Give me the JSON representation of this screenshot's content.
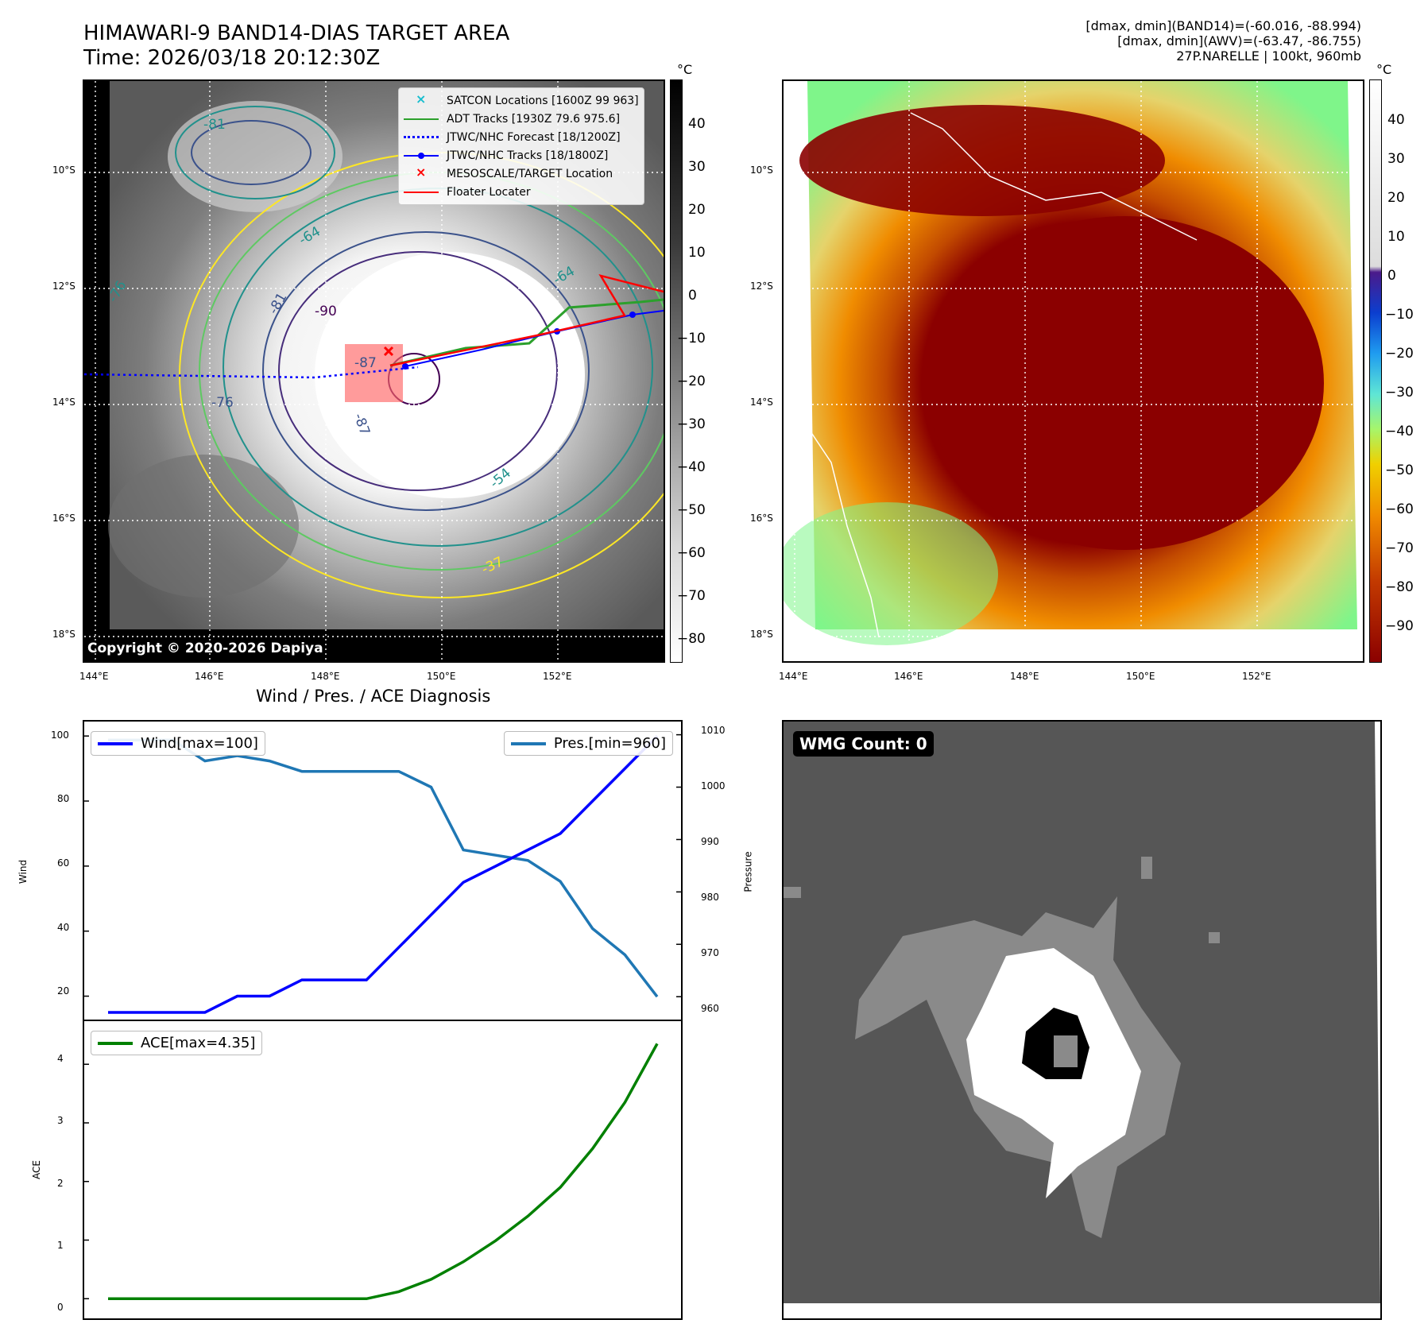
{
  "header": {
    "title_line1": "HIMAWARI-9 BAND14-DIAS TARGET AREA",
    "title_line2": "Time: 2026/03/18 20:12:30Z",
    "right_line1": "[dmax, dmin](BAND14)=(-60.016, -88.994)",
    "right_line2": "[dmax, dmin](AWV)=(-63.47, -86.755)",
    "right_line3": "27P.NARELLE | 100kt, 960mb"
  },
  "map_axes": {
    "lat_labels": [
      "10°S",
      "12°S",
      "14°S",
      "16°S",
      "18°S"
    ],
    "lon_labels": [
      "144°E",
      "146°E",
      "148°E",
      "150°E",
      "152°E"
    ]
  },
  "ir_panel": {
    "copyright": "Copyright © 2020-2026 Dapiya",
    "legend": [
      {
        "label": "SATCON Locations [1600Z 99 963]",
        "symbol": "x",
        "color": "#17becf"
      },
      {
        "label": "ADT Tracks [1930Z 79.6 975.6]",
        "symbol": "line",
        "color": "#2ca02c"
      },
      {
        "label": "JTWC/NHC Forecast [18/1200Z]",
        "symbol": "dotted",
        "color": "#0000ff"
      },
      {
        "label": "JTWC/NHC Tracks [18/1800Z]",
        "symbol": "line-dot",
        "color": "#0000ff"
      },
      {
        "label": "MESOSCALE/TARGET Location",
        "symbol": "x",
        "color": "#ff0000"
      },
      {
        "label": "Floater Locater",
        "symbol": "line",
        "color": "#ff0000"
      }
    ],
    "contour_labels": [
      "-64",
      "-76",
      "-81",
      "-87",
      "-90",
      "-54",
      "-76",
      "-87",
      "-37",
      "-64",
      "-81"
    ],
    "colorbar": {
      "unit": "°C",
      "ticks": [
        "40",
        "30",
        "20",
        "10",
        "0",
        "−10",
        "−20",
        "−30",
        "−40",
        "−50",
        "−60",
        "−70",
        "−80"
      ]
    }
  },
  "wv_panel": {
    "colorbar": {
      "unit": "°C",
      "ticks": [
        "40",
        "30",
        "20",
        "10",
        "0",
        "−10",
        "−20",
        "−30",
        "−40",
        "−50",
        "−60",
        "−70",
        "−80",
        "−90"
      ]
    }
  },
  "wmg_panel": {
    "label": "WMG Count: 0"
  },
  "chart_data": [
    {
      "type": "line",
      "title": "Wind / Pres. / ACE Diagnosis",
      "xlabel": "",
      "ylabel": "Wind",
      "ylabel_right": "Pressure",
      "x": [
        0,
        1,
        2,
        3,
        4,
        5,
        6,
        7,
        8,
        9,
        10,
        11,
        12,
        13,
        14,
        15,
        16,
        17
      ],
      "series": [
        {
          "name": "Wind",
          "legend": "Wind[max=100]",
          "axis": "left",
          "color": "#0000ff",
          "values": [
            15,
            15,
            15,
            15,
            20,
            20,
            25,
            25,
            25,
            35,
            45,
            55,
            60,
            65,
            70,
            80,
            90,
            100
          ]
        },
        {
          "name": "Pressure",
          "legend": "Pres.[min=960]",
          "axis": "right",
          "color": "#1f77b4",
          "values": [
            1009,
            1009,
            1009,
            1005,
            1006,
            1005,
            1003,
            1003,
            1003,
            1003,
            1000,
            988,
            987,
            986,
            982,
            973,
            968,
            960
          ]
        }
      ],
      "ylim": [
        15,
        102
      ],
      "ylim_right": [
        957,
        1011
      ],
      "yticks": [
        "100",
        "80",
        "60",
        "40",
        "20"
      ],
      "yticks_right": [
        "1010",
        "1000",
        "990",
        "980",
        "970",
        "960"
      ]
    },
    {
      "type": "line",
      "title": "",
      "xlabel": "",
      "ylabel": "ACE",
      "x": [
        0,
        1,
        2,
        3,
        4,
        5,
        6,
        7,
        8,
        9,
        10,
        11,
        12,
        13,
        14,
        15,
        16,
        17
      ],
      "series": [
        {
          "name": "ACE",
          "legend": "ACE[max=4.35]",
          "color": "#008000",
          "values": [
            0,
            0,
            0,
            0,
            0,
            0,
            0,
            0,
            0,
            0.12,
            0.33,
            0.63,
            0.99,
            1.41,
            1.9,
            2.56,
            3.35,
            4.35
          ]
        }
      ],
      "ylim": [
        -0.2,
        4.6
      ],
      "yticks": [
        "4",
        "3",
        "2",
        "1",
        "0"
      ]
    }
  ]
}
